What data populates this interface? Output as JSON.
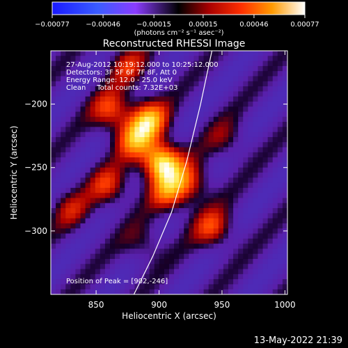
{
  "chart_data": {
    "type": "heatmap",
    "title": "Reconstructed RHESSI Image",
    "xlabel": "Heliocentric X (arcsec)",
    "ylabel": "Heliocentric Y (arcsec)",
    "xlim": [
      814,
      1002
    ],
    "ylim": [
      -350,
      -158
    ],
    "x_ticks": [
      850,
      900,
      950,
      1000
    ],
    "y_ticks": [
      -200,
      -250,
      -300
    ],
    "colorbar": {
      "min": -0.00077,
      "max": 0.00077,
      "tick_values": [
        -0.00077,
        -0.00046,
        -0.00015,
        0.00015,
        0.00046,
        0.00077
      ],
      "tick_labels": [
        "-0.00077",
        "-0.00046",
        "-0.00015",
        "0.00015",
        "0.00046",
        "0.00077"
      ],
      "unit_label": "(photons cm⁻² s⁻¹ asec⁻²)"
    },
    "annotations": [
      "27-Aug-2012 10:19:12.000 to 10:25:12.000",
      "Detectors: 3F 5F 6F 7F 8F, Att 0",
      "Energy Range: 12.0 - 25.0 keV",
      "Clean     Total counts: 7.32E+03"
    ],
    "peak_label": "Position of Peak = [902,-246]",
    "peak": {
      "x": 902,
      "y": -246
    },
    "limb_points": [
      [
        880,
        -350
      ],
      [
        895,
        -320
      ],
      [
        910,
        -285
      ],
      [
        922,
        -245
      ],
      [
        933,
        -200
      ],
      [
        942,
        -158
      ]
    ],
    "bright_sources": [
      {
        "x": 902,
        "y": -246,
        "value": 0.00077
      },
      {
        "x": 892,
        "y": -212,
        "value": 0.00055
      },
      {
        "x": 880,
        "y": -228,
        "value": 0.00045
      },
      {
        "x": 862,
        "y": -205,
        "value": 0.0004
      },
      {
        "x": 875,
        "y": -170,
        "value": 0.0003
      },
      {
        "x": 860,
        "y": -265,
        "value": 0.00035
      },
      {
        "x": 908,
        "y": -270,
        "value": 0.0004
      },
      {
        "x": 925,
        "y": -262,
        "value": 0.00035
      },
      {
        "x": 943,
        "y": -298,
        "value": 0.00038
      },
      {
        "x": 953,
        "y": -228,
        "value": 0.0002
      },
      {
        "x": 830,
        "y": -283,
        "value": 0.00025
      },
      {
        "x": 888,
        "y": -310,
        "value": 0.0002
      }
    ]
  },
  "footer": {
    "timestamp": "13-May-2022 21:39"
  }
}
